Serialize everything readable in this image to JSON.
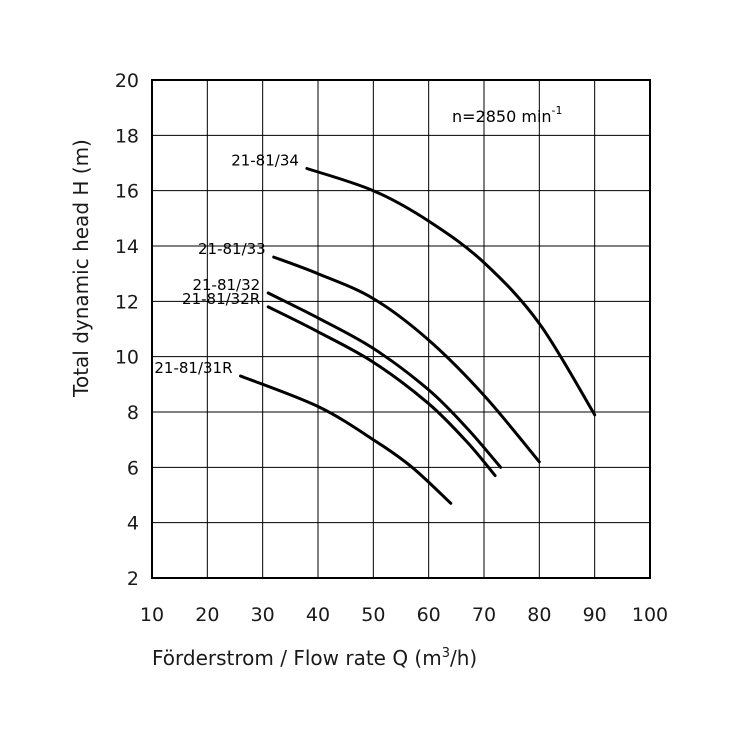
{
  "chart_data": {
    "type": "line",
    "xlabel_main": "Förderstrom / Flow rate Q (m",
    "xlabel_sup": "3",
    "xlabel_tail": "/h)",
    "ylabel": "Total dynamic head H (m)",
    "speed_label_main": "n=2850 min",
    "speed_label_sup": "-1",
    "xlim": [
      10,
      100
    ],
    "ylim": [
      2,
      20
    ],
    "xticks": [
      10,
      20,
      30,
      40,
      50,
      60,
      70,
      80,
      90,
      100
    ],
    "yticks": [
      2,
      4,
      6,
      8,
      10,
      12,
      14,
      16,
      18,
      20
    ],
    "grid": true,
    "series": [
      {
        "name": "21-81/34",
        "x": [
          38,
          50,
          60,
          70,
          80,
          90
        ],
        "y": [
          16.8,
          16.0,
          14.9,
          13.4,
          11.2,
          7.9
        ]
      },
      {
        "name": "21-81/33",
        "x": [
          32,
          40,
          50,
          60,
          70,
          80
        ],
        "y": [
          13.6,
          13.0,
          12.1,
          10.6,
          8.6,
          6.2
        ]
      },
      {
        "name": "21-81/32",
        "x": [
          31,
          40,
          50,
          60,
          67,
          73
        ],
        "y": [
          12.3,
          11.4,
          10.3,
          8.8,
          7.4,
          6.0
        ]
      },
      {
        "name": "21-81/32R",
        "x": [
          31,
          40,
          50,
          60,
          67,
          72
        ],
        "y": [
          11.8,
          10.9,
          9.8,
          8.3,
          6.9,
          5.7
        ]
      },
      {
        "name": "21-81/31R",
        "x": [
          26,
          40,
          50,
          57,
          64
        ],
        "y": [
          9.3,
          8.2,
          7.0,
          6.0,
          4.7
        ]
      }
    ]
  }
}
